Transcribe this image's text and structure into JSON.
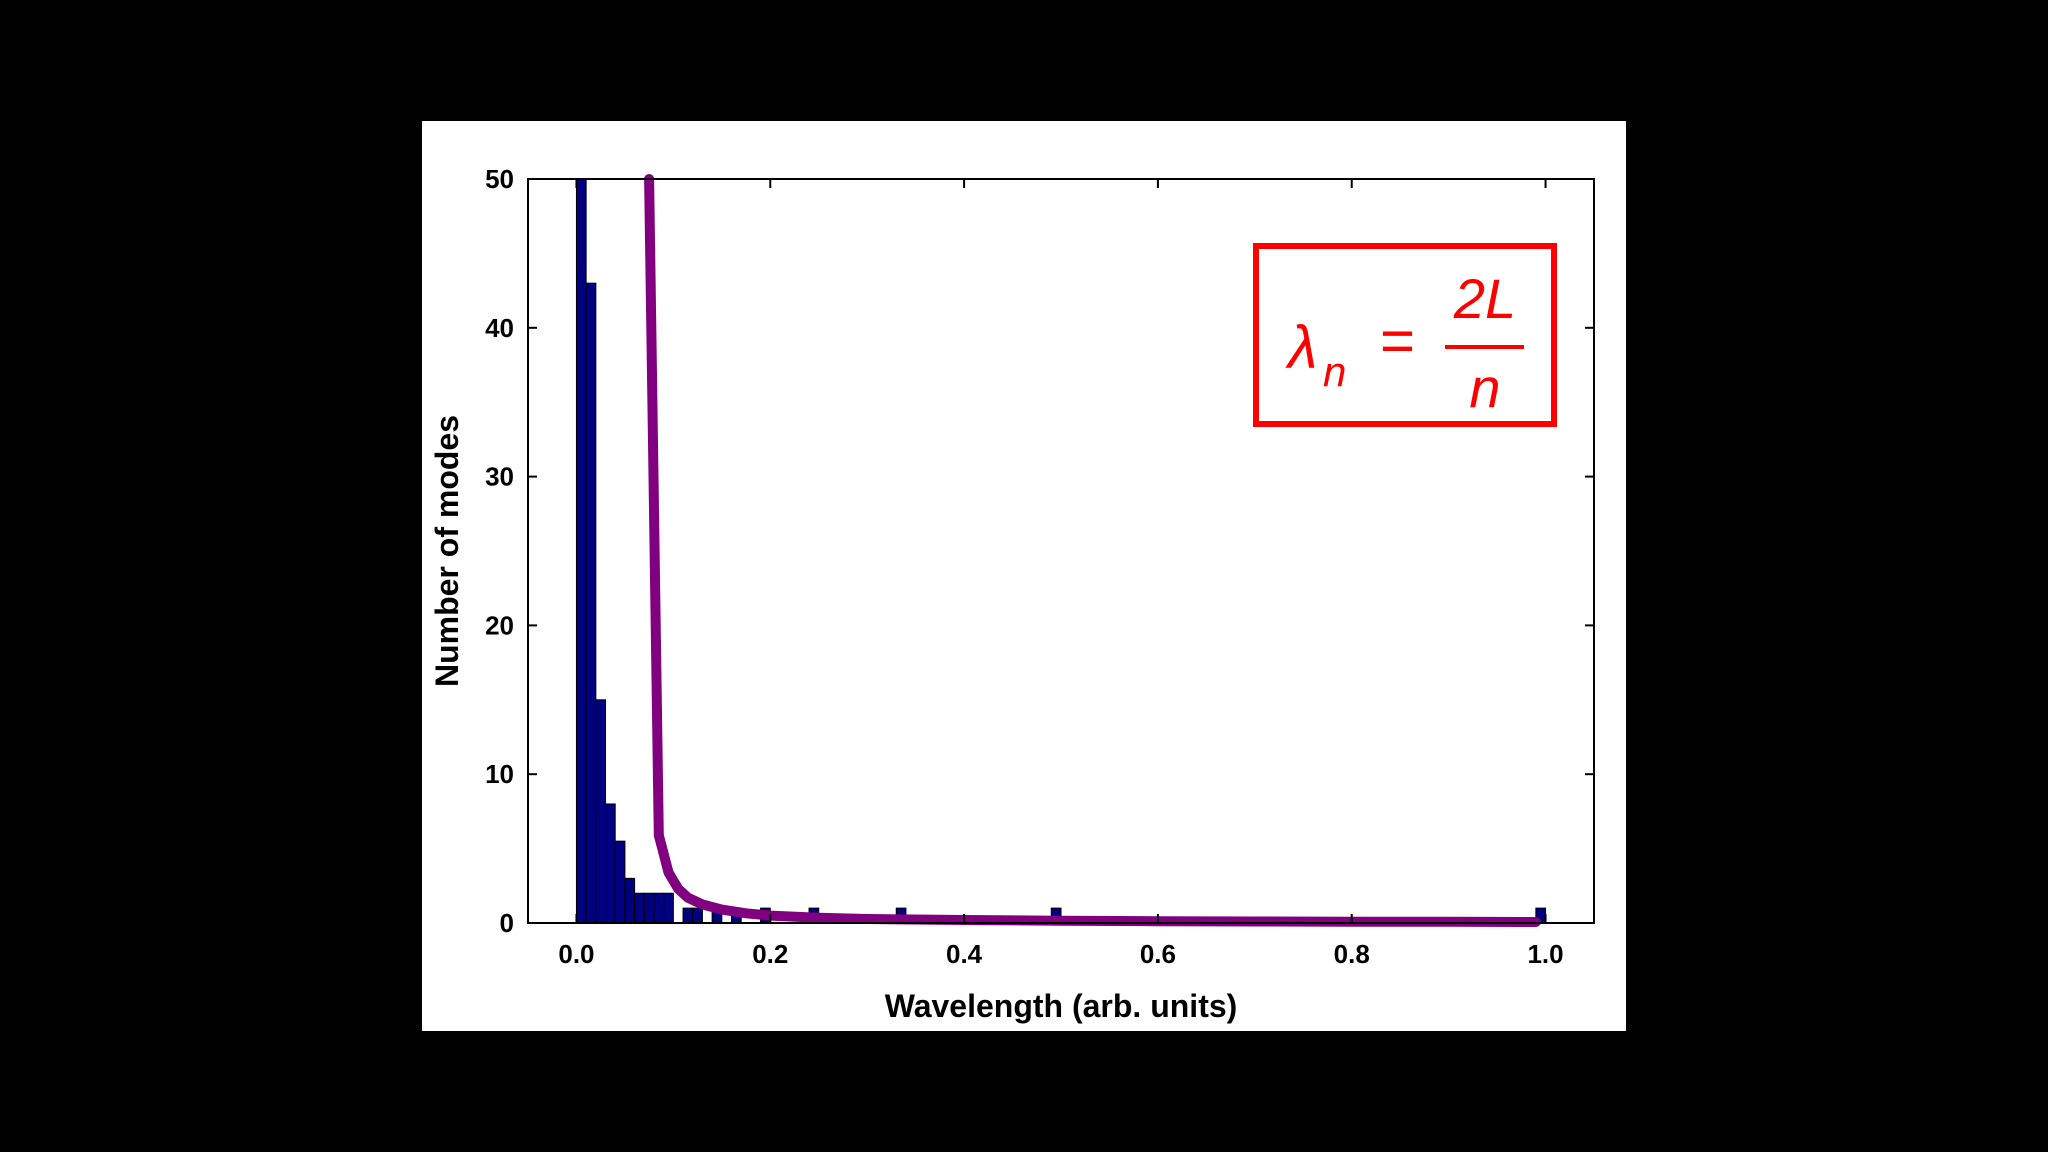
{
  "chart_data": {
    "type": "bar",
    "xlabel": "Wavelength (arb. units)",
    "ylabel": "Number of modes",
    "xlim": [
      -0.05,
      1.05
    ],
    "ylim": [
      0,
      50
    ],
    "xticks": [
      "0.0",
      "0.2",
      "0.4",
      "0.6",
      "0.8",
      "1.0"
    ],
    "xtick_values": [
      0,
      0.2,
      0.4,
      0.6,
      0.8,
      1.0
    ],
    "yticks": [
      "0",
      "10",
      "20",
      "30",
      "40",
      "50"
    ],
    "ytick_values": [
      0,
      10,
      20,
      30,
      40,
      50
    ],
    "bin_width": 0.01,
    "bars": [
      {
        "x": 0.0,
        "value": 50
      },
      {
        "x": 0.01,
        "value": 43
      },
      {
        "x": 0.02,
        "value": 15
      },
      {
        "x": 0.03,
        "value": 8
      },
      {
        "x": 0.04,
        "value": 5.5
      },
      {
        "x": 0.05,
        "value": 3
      },
      {
        "x": 0.06,
        "value": 2
      },
      {
        "x": 0.07,
        "value": 2
      },
      {
        "x": 0.08,
        "value": 2
      },
      {
        "x": 0.09,
        "value": 2
      },
      {
        "x": 0.11,
        "value": 1
      },
      {
        "x": 0.12,
        "value": 1
      },
      {
        "x": 0.14,
        "value": 1
      },
      {
        "x": 0.16,
        "value": 1
      },
      {
        "x": 0.19,
        "value": 1
      },
      {
        "x": 0.24,
        "value": 1
      },
      {
        "x": 0.33,
        "value": 1
      },
      {
        "x": 0.49,
        "value": 1
      },
      {
        "x": 0.99,
        "value": 1
      }
    ],
    "curve": {
      "color": "#800080",
      "points": [
        [
          0.075,
          50
        ],
        [
          0.085,
          5.9
        ],
        [
          0.095,
          3.4
        ],
        [
          0.105,
          2.3
        ],
        [
          0.115,
          1.7
        ],
        [
          0.13,
          1.25
        ],
        [
          0.15,
          0.9
        ],
        [
          0.175,
          0.65
        ],
        [
          0.2,
          0.5
        ],
        [
          0.25,
          0.35
        ],
        [
          0.3,
          0.27
        ],
        [
          0.4,
          0.2
        ],
        [
          0.5,
          0.15
        ],
        [
          0.6,
          0.12
        ],
        [
          0.7,
          0.1
        ],
        [
          0.8,
          0.09
        ],
        [
          0.9,
          0.08
        ],
        [
          0.99,
          0.07
        ]
      ]
    },
    "bar_color": "#000080",
    "grid": false,
    "annotation": {
      "lhs_symbol": "λ",
      "lhs_subscript": "n",
      "equals": "=",
      "numerator": "2L",
      "denominator": "n",
      "color": "#ff0000"
    }
  }
}
